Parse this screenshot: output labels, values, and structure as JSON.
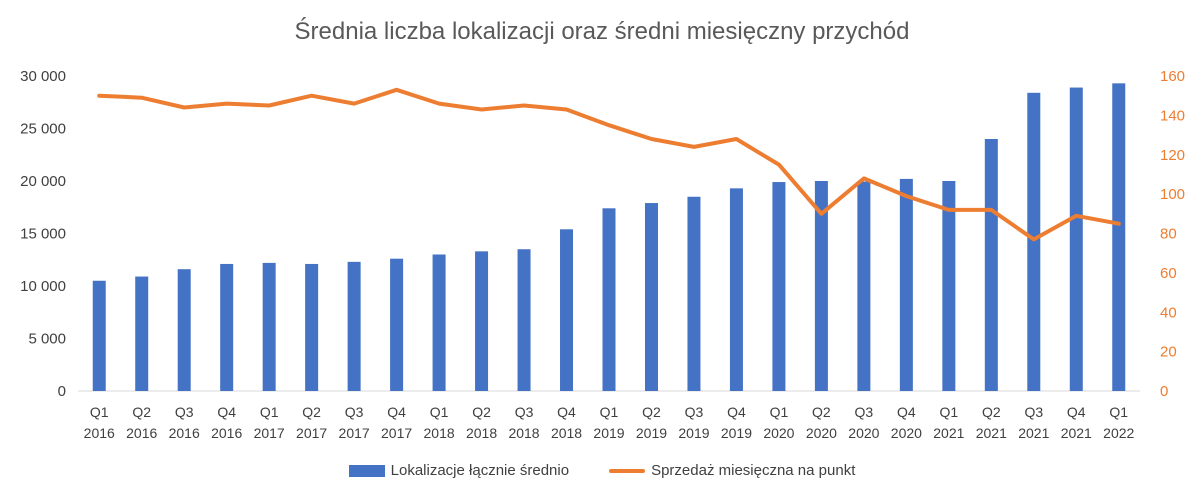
{
  "chart_data": {
    "type": "bar+line",
    "title": "Średnia liczba lokalizacji oraz średni miesięczny przychód",
    "categories": [
      [
        "Q1",
        "2016"
      ],
      [
        "Q2",
        "2016"
      ],
      [
        "Q3",
        "2016"
      ],
      [
        "Q4",
        "2016"
      ],
      [
        "Q1",
        "2017"
      ],
      [
        "Q2",
        "2017"
      ],
      [
        "Q3",
        "2017"
      ],
      [
        "Q4",
        "2017"
      ],
      [
        "Q1",
        "2018"
      ],
      [
        "Q2",
        "2018"
      ],
      [
        "Q3",
        "2018"
      ],
      [
        "Q4",
        "2018"
      ],
      [
        "Q1",
        "2019"
      ],
      [
        "Q2",
        "2019"
      ],
      [
        "Q3",
        "2019"
      ],
      [
        "Q4",
        "2019"
      ],
      [
        "Q1",
        "2020"
      ],
      [
        "Q2",
        "2020"
      ],
      [
        "Q3",
        "2020"
      ],
      [
        "Q4",
        "2020"
      ],
      [
        "Q1",
        "2021"
      ],
      [
        "Q2",
        "2021"
      ],
      [
        "Q3",
        "2021"
      ],
      [
        "Q4",
        "2021"
      ],
      [
        "Q1",
        "2022"
      ]
    ],
    "series": [
      {
        "name": "Lokalizacje łącznie średnio",
        "type": "bar",
        "axis": "left",
        "color": "#4472c4",
        "values": [
          10500,
          10900,
          11600,
          12100,
          12200,
          12100,
          12300,
          12600,
          13000,
          13300,
          13500,
          15400,
          17400,
          17900,
          18500,
          19300,
          19900,
          20000,
          19950,
          20200,
          20000,
          24000,
          28400,
          28900,
          29300
        ]
      },
      {
        "name": "Sprzedaż miesięczna na punkt",
        "type": "line",
        "axis": "right",
        "color": "#ed7d31",
        "values": [
          150,
          149,
          144,
          146,
          145,
          150,
          146,
          153,
          146,
          143,
          145,
          143,
          135,
          128,
          124,
          128,
          115,
          90,
          108,
          99,
          92,
          92,
          77,
          89,
          85
        ]
      }
    ],
    "y_left": {
      "min": 0,
      "max": 30000,
      "ticks": [
        "0",
        "5 000",
        "10 000",
        "15 000",
        "20 000",
        "25 000",
        "30 000"
      ]
    },
    "y_right": {
      "min": 0,
      "max": 160,
      "ticks": [
        "0",
        "20",
        "40",
        "60",
        "80",
        "100",
        "120",
        "140",
        "160"
      ]
    },
    "grid": false,
    "legend_position": "bottom"
  },
  "legend": {
    "bar_label": "Lokalizacje łącznie średnio",
    "line_label": "Sprzedaż miesięczna na punkt"
  }
}
